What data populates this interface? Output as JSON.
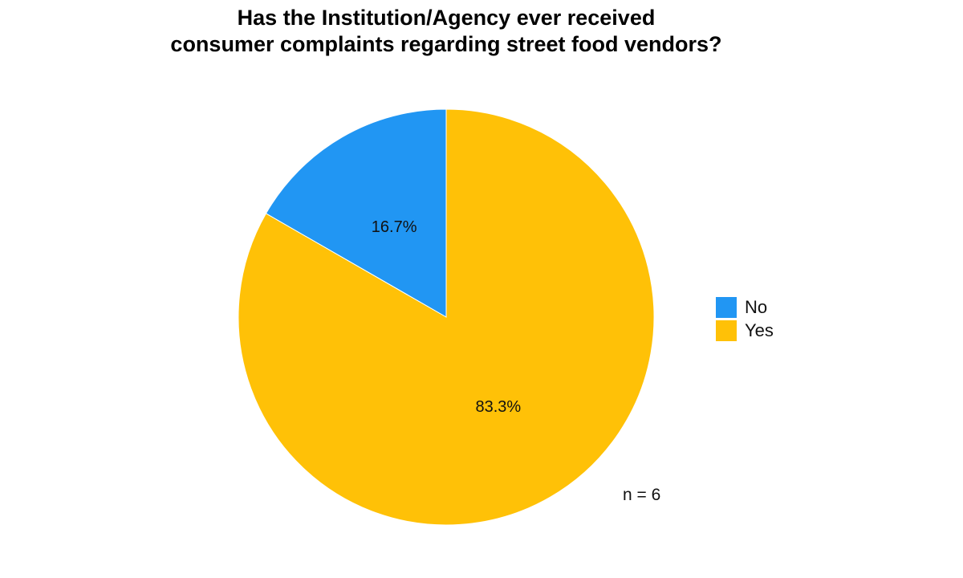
{
  "chart_data": {
    "type": "pie",
    "title": [
      "Has the Institution/Agency ever received",
      "consumer complaints regarding street food vendors?"
    ],
    "slices": [
      {
        "name": "No",
        "value": 16.7,
        "label": "16.7%",
        "color": "#2196F3"
      },
      {
        "name": "Yes",
        "value": 83.3,
        "label": "83.3%",
        "color": "#FFC107"
      }
    ],
    "start_angle_deg": 0,
    "direction": "counterclockwise",
    "legend": {
      "position": "right",
      "entries": [
        "No",
        "Yes"
      ]
    },
    "annotation": "n = 6"
  }
}
